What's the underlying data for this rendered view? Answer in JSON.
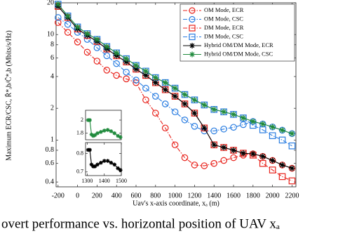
{
  "chart_data": [
    {
      "type": "line",
      "log_y": true,
      "xlabel": "Uav's x-axis coordinate, xₐ (m)",
      "ylabel": "Maximum ECR/CSC, R̄*ₐb/C̄*ₐb (Mbits/s/Hz)",
      "x": [
        -200,
        -100,
        0,
        100,
        200,
        300,
        400,
        500,
        600,
        700,
        800,
        900,
        1000,
        1100,
        1200,
        1300,
        1400,
        1500,
        1600,
        1700,
        1800,
        1900,
        2000,
        2100,
        2200
      ],
      "xlim": [
        -220,
        2240
      ],
      "xticks": [
        -200,
        0,
        200,
        400,
        600,
        800,
        1000,
        1200,
        1400,
        1600,
        1800,
        2000,
        2200
      ],
      "ylim": [
        0.36,
        20
      ],
      "yticks": [
        0.4,
        0.6,
        0.8,
        1,
        2,
        4,
        6,
        8,
        10,
        20
      ],
      "legend": "upper right",
      "series": [
        {
          "name": "OM Mode, ECR",
          "color": "#e8231c",
          "marker": "circle",
          "line": "dashdot",
          "values": [
            13,
            10.5,
            8.5,
            6.8,
            5.6,
            4.6,
            4.1,
            3.8,
            3.5,
            2.4,
            1.8,
            1.3,
            0.9,
            0.68,
            0.58,
            0.57,
            0.6,
            0.64,
            0.68,
            0.72,
            0.74,
            0.7,
            0.64,
            0.58,
            0.54
          ]
        },
        {
          "name": "OM Mode, CSC",
          "color": "#2a7de1",
          "marker": "circle",
          "line": "dashdot",
          "values": [
            14.5,
            12.5,
            10.5,
            9,
            7.5,
            6.3,
            5.3,
            4.4,
            3.7,
            3.1,
            2.6,
            2.2,
            1.85,
            1.55,
            1.35,
            1.22,
            1.22,
            1.27,
            1.32,
            1.4,
            1.5,
            1.42,
            1.33,
            1.24,
            1.15
          ]
        },
        {
          "name": "DM Mode, ECR",
          "color": "#e8231c",
          "marker": "square",
          "line": "dashdot",
          "values": [
            18.5,
            14.5,
            11.3,
            9.8,
            8.6,
            7.3,
            6.3,
            5.5,
            4.7,
            4.1,
            3.5,
            3.0,
            2.6,
            2.2,
            1.8,
            1.3,
            0.9,
            0.85,
            0.8,
            0.75,
            0.72,
            0.6,
            0.52,
            0.45,
            0.41
          ]
        },
        {
          "name": "DM Mode, CSC",
          "color": "#2a7de1",
          "marker": "square",
          "line": "dashdot",
          "values": [
            19.4,
            15,
            11.8,
            10.2,
            9,
            7.7,
            6.7,
            5.9,
            5.1,
            4.5,
            3.9,
            3.5,
            3.1,
            2.7,
            2.4,
            2.15,
            1.95,
            1.85,
            1.75,
            1.62,
            1.38,
            1.25,
            1.1,
            1.0,
            0.88
          ]
        },
        {
          "name": "Hybrid OM/DM Mode, ECR",
          "color": "#000000",
          "marker": "star",
          "line": "solid",
          "values": [
            18.5,
            14.5,
            11.3,
            9.8,
            8.6,
            7.3,
            6.3,
            5.5,
            4.7,
            4.1,
            3.5,
            3.0,
            2.6,
            2.2,
            1.8,
            1.3,
            0.9,
            0.85,
            0.8,
            0.75,
            0.74,
            0.7,
            0.64,
            0.58,
            0.54
          ]
        },
        {
          "name": "Hybrid OM/DM Mode, CSC",
          "color": "#1f8a3c",
          "marker": "star",
          "line": "solid",
          "values": [
            19.4,
            15,
            11.8,
            10.2,
            9,
            7.7,
            6.7,
            5.9,
            5.1,
            4.5,
            3.9,
            3.5,
            3.1,
            2.7,
            2.4,
            2.15,
            1.95,
            1.85,
            1.75,
            1.62,
            1.5,
            1.42,
            1.33,
            1.24,
            1.15
          ]
        }
      ],
      "caption": "overt performance vs. horizontal position of UAV xₐ"
    },
    {
      "type": "line",
      "x": [
        1305,
        1315,
        1325,
        1335,
        1345,
        1360,
        1380,
        1400,
        1420,
        1440,
        1460,
        1480,
        1495
      ],
      "xlim": [
        1290,
        1500
      ],
      "ylim": [
        1.7,
        2.15
      ],
      "yticks": [
        1.8,
        2
      ],
      "series": [
        {
          "color": "#1f8a3c",
          "marker": "star",
          "line": "solid",
          "values": [
            2.0,
            2.0,
            1.78,
            1.76,
            1.77,
            1.8,
            1.82,
            1.84,
            1.85,
            1.83,
            1.8,
            1.76,
            1.74
          ]
        }
      ]
    },
    {
      "type": "line",
      "x": [
        1305,
        1315,
        1325,
        1335,
        1345,
        1360,
        1380,
        1400,
        1420,
        1440,
        1460,
        1480,
        1495
      ],
      "xlim": [
        1290,
        1500
      ],
      "xticks": [
        1300,
        1400,
        1500
      ],
      "ylim": [
        0.68,
        0.86
      ],
      "yticks": [
        0.7,
        0.8
      ],
      "series": [
        {
          "color": "#000000",
          "marker": "star",
          "line": "solid",
          "values": [
            0.82,
            0.82,
            0.74,
            0.73,
            0.73,
            0.74,
            0.75,
            0.76,
            0.76,
            0.75,
            0.74,
            0.72,
            0.71
          ]
        }
      ]
    }
  ]
}
